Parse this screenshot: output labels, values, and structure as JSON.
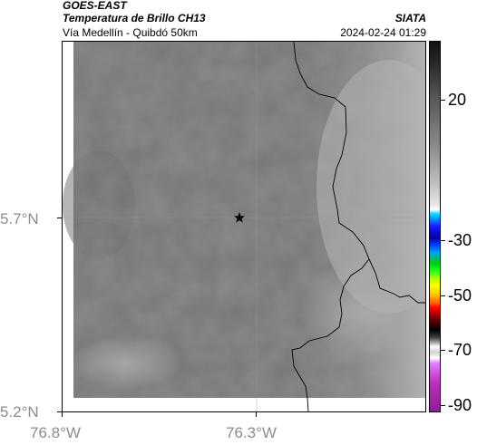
{
  "header": {
    "satellite": "GOES-EAST",
    "title": "Temperatura de Brillo CH13",
    "organization": "SIATA",
    "subtitle": "Vía Medellín - Quibdó 50km",
    "datetime": "2024-02-24 01:29"
  },
  "map": {
    "lat_labels": [
      "5.7°N",
      "5.2°N"
    ],
    "lon_labels": [
      "76.8°W",
      "76.3°W"
    ],
    "marker": "star-marker"
  },
  "colorbar": {
    "tick_labels": [
      "20",
      "-30",
      "-50",
      "-70",
      "-90"
    ]
  },
  "colors": {
    "land_gray": "#777777",
    "boundary": "#000000",
    "axis_label": "#8c8c8c"
  }
}
